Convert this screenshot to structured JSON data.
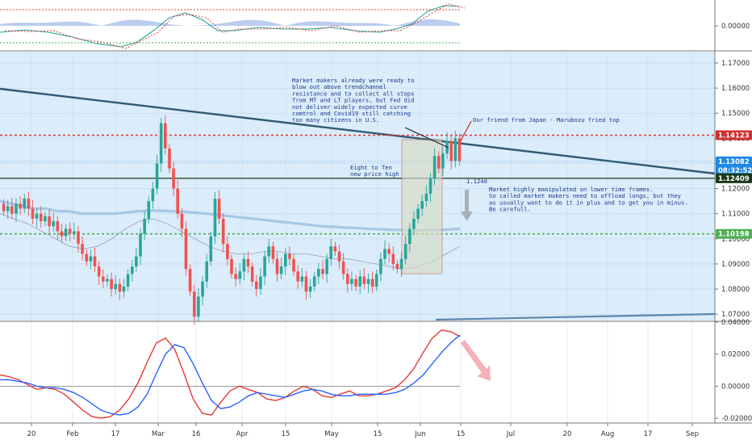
{
  "colors": {
    "up": "#26a69a",
    "down": "#ef5350",
    "channel_fill": "#cfe6f8",
    "channel_edge": "#2b5f80",
    "trendline": "#2f5a73",
    "support": "#4caf50",
    "resistance": "#e53935",
    "ma_slow": "#a7c8e6",
    "macd": "#2962ff",
    "signal": "#e53935",
    "annotation": "#1a3a8a"
  },
  "chart_data": {
    "type": "candlestick",
    "top_indicator": {
      "tick_labels": [
        "0.00000"
      ]
    },
    "main": {
      "y_ticks": [
        "1.17000",
        "1.16000",
        "1.15000",
        "1.14000",
        "1.13000",
        "1.12000",
        "1.11000",
        "1.10000",
        "1.09000",
        "1.08000",
        "1.07000"
      ],
      "ylim": [
        1.0675,
        1.1745
      ],
      "price_tags": [
        {
          "label": "1.14123",
          "value": 1.14123,
          "color": "#d32f2f"
        },
        {
          "label": "1.13082",
          "value": 1.13082,
          "color": "#1e88e5"
        },
        {
          "label": "08:32:52",
          "value": 1.12725,
          "color": "#1e88e5"
        },
        {
          "label": "1.12409",
          "value": 1.12409,
          "color": "#1b3b1b"
        },
        {
          "label": "1.10198",
          "value": 1.10198,
          "color": "#4caf50"
        }
      ],
      "candles": [
        [
          1.114,
          1.111
        ],
        [
          1.111,
          1.113
        ],
        [
          1.113,
          1.11
        ],
        [
          1.11,
          1.114
        ],
        [
          1.114,
          1.112
        ],
        [
          1.112,
          1.116
        ],
        [
          1.116,
          1.112
        ],
        [
          1.112,
          1.108
        ],
        [
          1.108,
          1.11
        ],
        [
          1.11,
          1.107
        ],
        [
          1.107,
          1.109
        ],
        [
          1.109,
          1.105
        ],
        [
          1.105,
          1.107
        ],
        [
          1.107,
          1.103
        ],
        [
          1.103,
          1.101
        ],
        [
          1.101,
          1.104
        ],
        [
          1.104,
          1.102
        ],
        [
          1.102,
          1.103
        ],
        [
          1.103,
          1.098
        ],
        [
          1.098,
          1.094
        ],
        [
          1.094,
          1.091
        ],
        [
          1.091,
          1.093
        ],
        [
          1.093,
          1.089
        ],
        [
          1.089,
          1.085
        ],
        [
          1.085,
          1.083
        ],
        [
          1.083,
          1.084
        ],
        [
          1.084,
          1.08
        ],
        [
          1.08,
          1.082
        ],
        [
          1.082,
          1.079
        ],
        [
          1.079,
          1.081
        ],
        [
          1.081,
          1.086
        ],
        [
          1.086,
          1.089
        ],
        [
          1.089,
          1.093
        ],
        [
          1.093,
          1.102
        ],
        [
          1.102,
          1.108
        ],
        [
          1.108,
          1.115
        ],
        [
          1.115,
          1.12
        ],
        [
          1.12,
          1.13
        ],
        [
          1.13,
          1.146
        ],
        [
          1.146,
          1.136
        ],
        [
          1.136,
          1.128
        ],
        [
          1.128,
          1.12
        ],
        [
          1.12,
          1.11
        ],
        [
          1.11,
          1.104
        ],
        [
          1.104,
          1.088
        ],
        [
          1.088,
          1.079
        ],
        [
          1.079,
          1.069
        ],
        [
          1.069,
          1.077
        ],
        [
          1.077,
          1.083
        ],
        [
          1.083,
          1.091
        ],
        [
          1.091,
          1.101
        ],
        [
          1.101,
          1.116
        ],
        [
          1.116,
          1.108
        ],
        [
          1.108,
          1.098
        ],
        [
          1.098,
          1.092
        ],
        [
          1.092,
          1.086
        ],
        [
          1.086,
          1.084
        ],
        [
          1.084,
          1.087
        ],
        [
          1.087,
          1.092
        ],
        [
          1.092,
          1.089
        ],
        [
          1.089,
          1.083
        ],
        [
          1.083,
          1.08
        ],
        [
          1.08,
          1.085
        ],
        [
          1.085,
          1.093
        ],
        [
          1.093,
          1.097
        ],
        [
          1.097,
          1.092
        ],
        [
          1.092,
          1.086
        ],
        [
          1.086,
          1.089
        ],
        [
          1.089,
          1.094
        ],
        [
          1.094,
          1.092
        ],
        [
          1.092,
          1.087
        ],
        [
          1.087,
          1.083
        ],
        [
          1.083,
          1.085
        ],
        [
          1.085,
          1.079
        ],
        [
          1.079,
          1.081
        ],
        [
          1.081,
          1.085
        ],
        [
          1.085,
          1.088
        ],
        [
          1.088,
          1.086
        ],
        [
          1.086,
          1.092
        ],
        [
          1.092,
          1.097
        ],
        [
          1.097,
          1.095
        ],
        [
          1.095,
          1.091
        ],
        [
          1.091,
          1.086
        ],
        [
          1.086,
          1.082
        ],
        [
          1.082,
          1.084
        ],
        [
          1.084,
          1.081
        ],
        [
          1.081,
          1.085
        ],
        [
          1.085,
          1.082
        ],
        [
          1.082,
          1.084
        ],
        [
          1.084,
          1.081
        ],
        [
          1.081,
          1.086
        ],
        [
          1.086,
          1.092
        ],
        [
          1.092,
          1.096
        ],
        [
          1.096,
          1.094
        ],
        [
          1.094,
          1.09
        ],
        [
          1.09,
          1.088
        ],
        [
          1.088,
          1.092
        ],
        [
          1.092,
          1.098
        ],
        [
          1.098,
          1.104
        ],
        [
          1.104,
          1.108
        ],
        [
          1.108,
          1.112
        ],
        [
          1.112,
          1.115
        ],
        [
          1.115,
          1.118
        ],
        [
          1.118,
          1.124
        ],
        [
          1.124,
          1.133
        ],
        [
          1.133,
          1.128
        ],
        [
          1.128,
          1.134
        ],
        [
          1.134,
          1.139
        ],
        [
          1.139,
          1.131
        ],
        [
          1.131,
          1.14
        ],
        [
          1.14,
          1.131
        ]
      ],
      "ma_slow": [
        1.115,
        1.114,
        1.113,
        1.112,
        1.112,
        1.111,
        1.111,
        1.11,
        1.11,
        1.11,
        1.11,
        1.1105,
        1.111,
        1.1112,
        1.1112,
        1.111,
        1.1108,
        1.1104,
        1.11,
        1.1095,
        1.109,
        1.1085,
        1.108,
        1.1075,
        1.107,
        1.1065,
        1.106,
        1.1055,
        1.105,
        1.1048,
        1.1045,
        1.1043,
        1.104,
        1.1038,
        1.1036,
        1.1035,
        1.1034,
        1.1034,
        1.1035,
        1.1037,
        1.104
      ],
      "ma_fast": [
        1.11,
        1.108,
        1.106,
        1.103,
        1.1,
        1.097,
        1.096,
        1.097,
        1.1,
        1.104,
        1.107,
        1.108,
        1.106,
        1.103,
        1.1,
        1.097,
        1.095,
        1.094,
        1.094,
        1.095,
        1.095,
        1.094,
        1.094,
        1.093,
        1.092,
        1.092,
        1.091,
        1.09,
        1.089,
        1.088,
        1.089,
        1.091,
        1.094,
        1.097
      ],
      "resistance_value": 1.14123,
      "support_value": 1.10198,
      "trendline_label": "1.1240",
      "annotations": [
        {
          "key": "a1",
          "lines": [
            "Market makers already were ready to",
            "blow out above trendchannel",
            "resistance and to collect all stops",
            "from MT and LT players, but Fed did",
            "not deliver widely expected curve",
            "comtrol and Covid19 still catching",
            "too many citizens in U.S."
          ]
        },
        {
          "key": "a2",
          "lines": [
            "Our friend from Japan - Marubozu fried top"
          ]
        },
        {
          "key": "a3",
          "lines": [
            "Eight to Ten",
            "new price high"
          ]
        },
        {
          "key": "a4",
          "lines": [
            "Market highly manipulated on lower time frames.",
            "So called market makers need to offload longs, but they",
            "as usually want to do it in plus and to get you in minus.",
            "Be carefull."
          ]
        }
      ]
    },
    "macd": {
      "y_ticks": [
        "0.04000",
        "0.02000",
        "0.00000",
        "-0.02000"
      ],
      "ylim": [
        -0.023,
        0.04
      ],
      "macd_line": [
        0.007,
        0.006,
        0.004,
        0.001,
        -0.002,
        -0.001,
        -0.002,
        -0.005,
        -0.01,
        -0.015,
        -0.019,
        -0.02,
        -0.019,
        -0.015,
        -0.008,
        0.002,
        0.015,
        0.027,
        0.03,
        0.023,
        0.008,
        -0.008,
        -0.017,
        -0.018,
        -0.01,
        -0.003,
        0.0,
        -0.002,
        -0.004,
        -0.008,
        -0.009,
        -0.007,
        -0.003,
        0.0,
        -0.002,
        -0.006,
        -0.007,
        -0.005,
        -0.003,
        -0.006,
        -0.006,
        -0.005,
        -0.003,
        -0.001,
        0.004,
        0.011,
        0.021,
        0.03,
        0.035,
        0.034,
        0.031
      ],
      "signal_line": [
        0.004,
        0.004,
        0.003,
        0.002,
        0.0,
        -0.001,
        -0.001,
        -0.002,
        -0.004,
        -0.007,
        -0.011,
        -0.015,
        -0.017,
        -0.018,
        -0.017,
        -0.013,
        -0.005,
        0.008,
        0.02,
        0.026,
        0.024,
        0.014,
        0.002,
        -0.009,
        -0.014,
        -0.013,
        -0.01,
        -0.006,
        -0.004,
        -0.005,
        -0.006,
        -0.007,
        -0.005,
        -0.003,
        -0.002,
        -0.003,
        -0.005,
        -0.006,
        -0.006,
        -0.005,
        -0.005,
        -0.005,
        -0.005,
        -0.004,
        -0.002,
        0.002,
        0.007,
        0.014,
        0.021,
        0.027,
        0.032
      ]
    },
    "x_ticks": [
      "20",
      "Feb",
      "17",
      "Mar",
      "16",
      "Apr",
      "15",
      "May",
      "15",
      "Jun",
      "15",
      "Jul",
      "20",
      "Aug",
      "17",
      "Sep"
    ]
  }
}
